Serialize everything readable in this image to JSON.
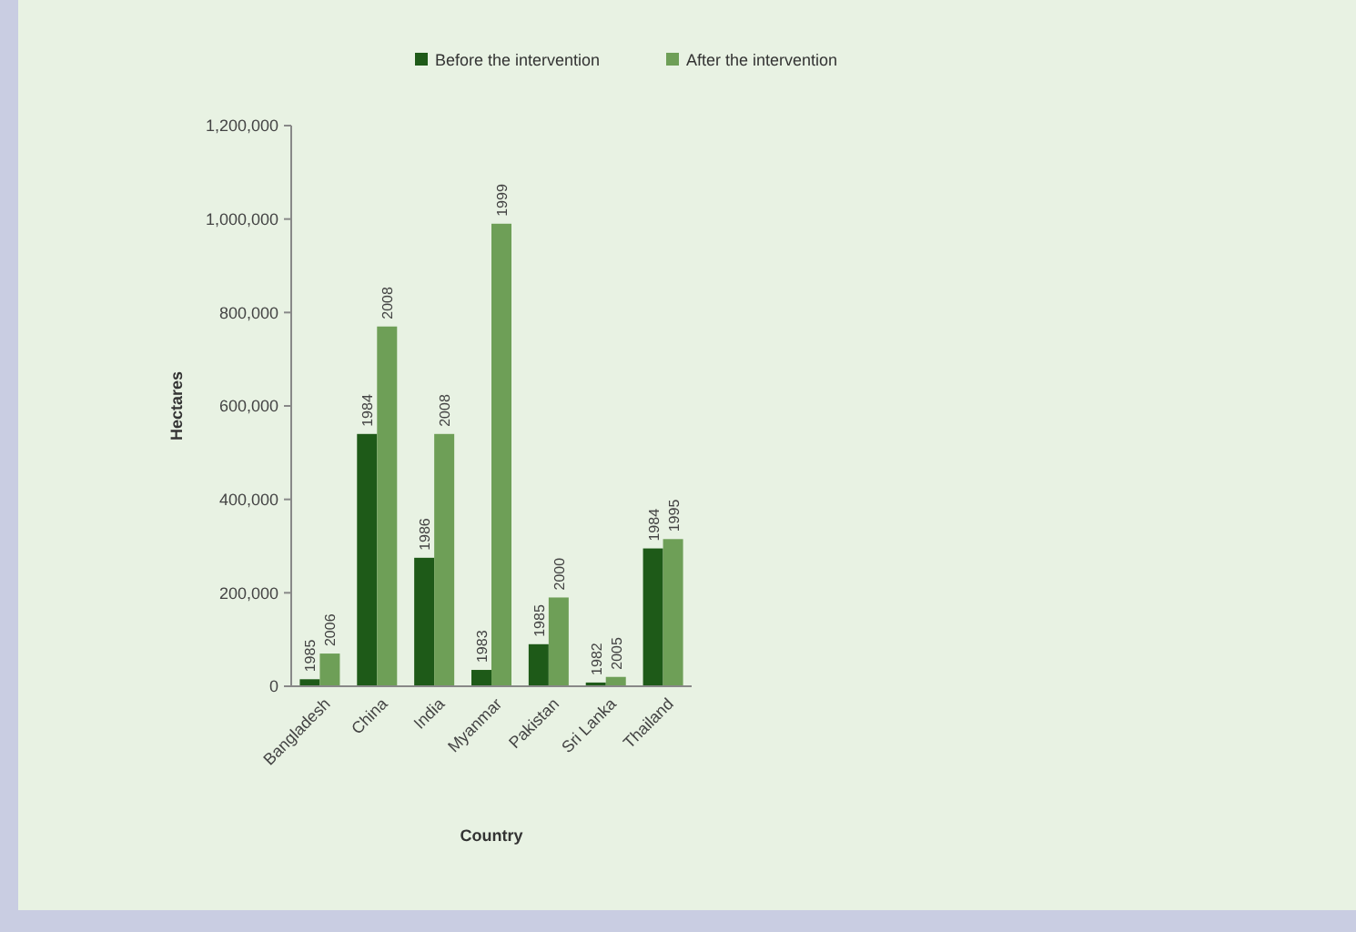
{
  "chart_data": {
    "type": "bar",
    "xlabel": "Country",
    "ylabel": "Hectares",
    "categories": [
      "Bangladesh",
      "China",
      "India",
      "Myanmar",
      "Pakistan",
      "Sri Lanka",
      "Thailand"
    ],
    "series": [
      {
        "name": "Before the intervention",
        "color": "#1e5a18",
        "values": [
          15000,
          540000,
          275000,
          35000,
          90000,
          8000,
          295000
        ]
      },
      {
        "name": "After the intervention",
        "color": "#6e9f57",
        "values": [
          70000,
          770000,
          540000,
          990000,
          190000,
          20000,
          315000
        ]
      }
    ],
    "annotations": [
      {
        "text": "1985",
        "x": "Bangladesh",
        "y": 15000
      },
      {
        "text": "2006",
        "x": "Bangladesh",
        "y": 70000
      },
      {
        "text": "1984",
        "x": "China",
        "y": 540000
      },
      {
        "text": "2008",
        "x": "China",
        "y": 770000
      },
      {
        "text": "1986",
        "x": "India",
        "y": 275000
      },
      {
        "text": "2008",
        "x": "India",
        "y": 540000
      },
      {
        "text": "1983",
        "x": "Myanmar",
        "y": 35000
      },
      {
        "text": "1999",
        "x": "Myanmar",
        "y": 990000
      },
      {
        "text": "1985",
        "x": "Pakistan",
        "y": 90000
      },
      {
        "text": "2000",
        "x": "Pakistan",
        "y": 190000
      },
      {
        "text": "1982",
        "x": "Sri Lanka",
        "y": 8000
      },
      {
        "text": "2005",
        "x": "Sri Lanka",
        "y": 20000
      },
      {
        "text": "1984",
        "x": "Thailand",
        "y": 295000
      },
      {
        "text": "1995",
        "x": "Thailand",
        "y": 315000
      }
    ],
    "ylim": [
      0,
      1200000
    ],
    "yticks": [
      {
        "value": 0,
        "label": "0"
      },
      {
        "value": 200000,
        "label": "200,000"
      },
      {
        "value": 400000,
        "label": "400,000"
      },
      {
        "value": 600000,
        "label": "600,000"
      },
      {
        "value": 800000,
        "label": "800,000"
      },
      {
        "value": 1000000,
        "label": "1,000,000"
      },
      {
        "value": 1200000,
        "label": "1,200,000"
      }
    ],
    "legend": "top",
    "grid": false
  }
}
